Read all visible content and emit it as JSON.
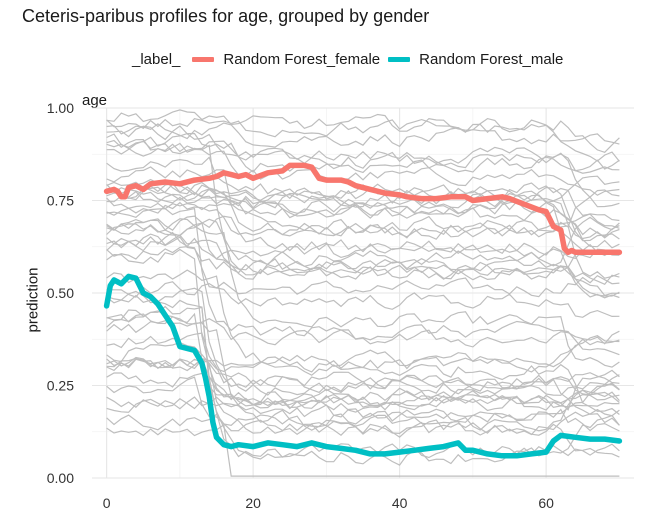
{
  "chart_data": {
    "type": "line",
    "title": "Ceteris-paribus profiles for age, grouped by gender",
    "facet_label": "age",
    "xlabel": "",
    "ylabel": "prediction",
    "xlim": [
      -2,
      72
    ],
    "ylim": [
      0,
      1
    ],
    "x_ticks": [
      0,
      20,
      40,
      60
    ],
    "y_ticks": [
      0,
      0.25,
      0.5,
      0.75,
      1.0
    ],
    "y_tick_labels": [
      "0.00",
      "0.25",
      "0.50",
      "0.75",
      "1.00"
    ],
    "grid": true,
    "legend": {
      "position": "top",
      "title": "_label_",
      "entries": [
        "Random Forest_female",
        "Random Forest_male"
      ]
    },
    "series": [
      {
        "name": "Random Forest_female",
        "color": "#F8766D",
        "points": [
          [
            0,
            0.775
          ],
          [
            1,
            0.78
          ],
          [
            1.5,
            0.775
          ],
          [
            2,
            0.76
          ],
          [
            2.5,
            0.76
          ],
          [
            3,
            0.785
          ],
          [
            4,
            0.79
          ],
          [
            5,
            0.78
          ],
          [
            6,
            0.795
          ],
          [
            8,
            0.8
          ],
          [
            10,
            0.795
          ],
          [
            12,
            0.805
          ],
          [
            14,
            0.81
          ],
          [
            15,
            0.815
          ],
          [
            16,
            0.825
          ],
          [
            17,
            0.82
          ],
          [
            18,
            0.815
          ],
          [
            19,
            0.82
          ],
          [
            20,
            0.81
          ],
          [
            22,
            0.825
          ],
          [
            24,
            0.83
          ],
          [
            25,
            0.845
          ],
          [
            27,
            0.845
          ],
          [
            28,
            0.84
          ],
          [
            29,
            0.81
          ],
          [
            30,
            0.805
          ],
          [
            32,
            0.805
          ],
          [
            33,
            0.8
          ],
          [
            34,
            0.79
          ],
          [
            36,
            0.78
          ],
          [
            38,
            0.77
          ],
          [
            40,
            0.765
          ],
          [
            41,
            0.76
          ],
          [
            43,
            0.755
          ],
          [
            45,
            0.755
          ],
          [
            47,
            0.76
          ],
          [
            49,
            0.76
          ],
          [
            50,
            0.75
          ],
          [
            52,
            0.755
          ],
          [
            54,
            0.76
          ],
          [
            55,
            0.755
          ],
          [
            57,
            0.74
          ],
          [
            59,
            0.725
          ],
          [
            60,
            0.72
          ],
          [
            60.5,
            0.7
          ],
          [
            61,
            0.68
          ],
          [
            62,
            0.67
          ],
          [
            62.5,
            0.62
          ],
          [
            63,
            0.61
          ],
          [
            63.5,
            0.615
          ],
          [
            64,
            0.61
          ],
          [
            66,
            0.61
          ],
          [
            68,
            0.61
          ],
          [
            70,
            0.61
          ]
        ]
      },
      {
        "name": "Random Forest_male",
        "color": "#00BFC4",
        "points": [
          [
            0,
            0.465
          ],
          [
            0.5,
            0.52
          ],
          [
            1,
            0.535
          ],
          [
            2,
            0.525
          ],
          [
            3,
            0.545
          ],
          [
            4,
            0.54
          ],
          [
            5,
            0.5
          ],
          [
            6,
            0.49
          ],
          [
            7,
            0.47
          ],
          [
            8,
            0.44
          ],
          [
            9,
            0.41
          ],
          [
            10,
            0.355
          ],
          [
            11,
            0.35
          ],
          [
            12,
            0.345
          ],
          [
            13,
            0.31
          ],
          [
            13.5,
            0.27
          ],
          [
            14,
            0.22
          ],
          [
            14.5,
            0.15
          ],
          [
            15,
            0.11
          ],
          [
            16,
            0.09
          ],
          [
            17,
            0.085
          ],
          [
            18,
            0.09
          ],
          [
            20,
            0.085
          ],
          [
            22,
            0.095
          ],
          [
            24,
            0.09
          ],
          [
            26,
            0.085
          ],
          [
            28,
            0.095
          ],
          [
            30,
            0.085
          ],
          [
            32,
            0.08
          ],
          [
            34,
            0.075
          ],
          [
            36,
            0.065
          ],
          [
            38,
            0.065
          ],
          [
            40,
            0.07
          ],
          [
            42,
            0.075
          ],
          [
            44,
            0.08
          ],
          [
            46,
            0.085
          ],
          [
            48,
            0.095
          ],
          [
            49,
            0.075
          ],
          [
            50,
            0.075
          ],
          [
            52,
            0.065
          ],
          [
            54,
            0.06
          ],
          [
            56,
            0.06
          ],
          [
            58,
            0.065
          ],
          [
            60,
            0.07
          ],
          [
            61,
            0.1
          ],
          [
            62,
            0.115
          ],
          [
            64,
            0.11
          ],
          [
            66,
            0.105
          ],
          [
            68,
            0.105
          ],
          [
            70,
            0.1
          ]
        ]
      }
    ],
    "background_profiles": {
      "color": "#BEBEBE",
      "count": 48,
      "x_start": 0,
      "x_end": 70,
      "note_values": "individual observation profiles drawn in grey"
    }
  }
}
